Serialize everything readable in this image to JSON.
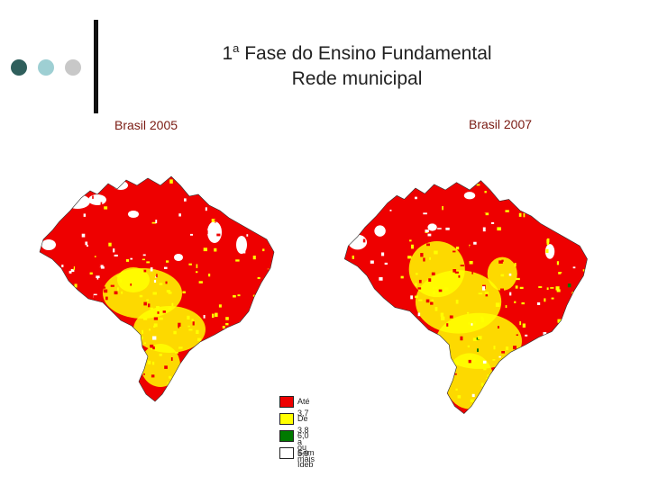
{
  "slide": {
    "title_prefix": "1",
    "title_ordinal": "a",
    "title_rest": " Fase do Ensino Fundamental",
    "title_line2": "Rede municipal"
  },
  "colors": {
    "dot1": "#2f5f5c",
    "dot2": "#9ecfd3",
    "dot3": "#c8c8c8",
    "category_red": "#ee0000",
    "category_yellow": "#ffff00",
    "category_green": "#007a00",
    "category_white": "#ffffff"
  },
  "maps": [
    {
      "label": "Brasil 2005",
      "variant": "2005"
    },
    {
      "label": "Brasil 2007",
      "variant": "2007"
    }
  ],
  "legend": [
    {
      "label": "Até 3,7",
      "color": "#ee0000"
    },
    {
      "label": "De 3,8 a 5,9",
      "color": "#ffff00"
    },
    {
      "label": "6,0 ou mais",
      "color": "#007a00"
    },
    {
      "label": "Sem Ideb",
      "color": "#ffffff"
    }
  ]
}
